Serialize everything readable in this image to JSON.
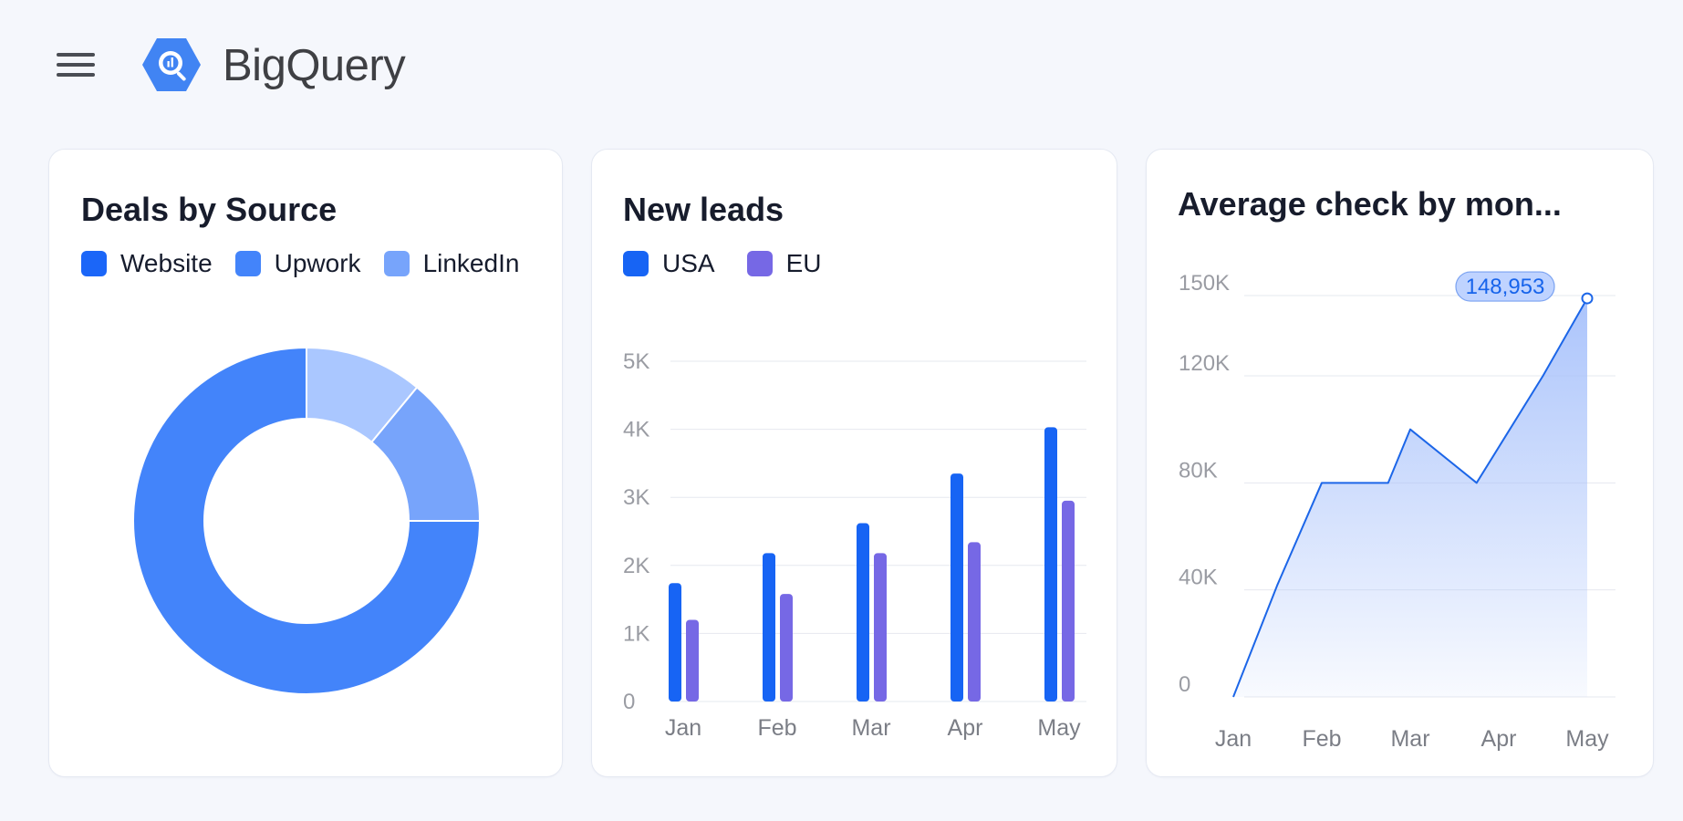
{
  "header": {
    "brand": "BigQuery",
    "menu_icon": "hamburger-menu-icon",
    "logo_icon": "bigquery-logo-icon",
    "logo_color": "#4184f3"
  },
  "cards": {
    "deals": {
      "title": "Deals by Source",
      "legend": [
        {
          "label": "Website",
          "color": "#1b66f8"
        },
        {
          "label": "Upwork",
          "color": "#4384fa"
        },
        {
          "label": "LinkedIn",
          "color": "#77a4fb"
        }
      ]
    },
    "leads": {
      "title": "New leads",
      "legend": [
        {
          "label": "USA",
          "color": "#1764f4"
        },
        {
          "label": "EU",
          "color": "#7668e5"
        }
      ]
    },
    "average": {
      "title": "Average check by mon..."
    }
  },
  "chart_data": [
    {
      "type": "pie",
      "title": "Deals by Source",
      "categories": [
        "LinkedIn",
        "Upwork",
        "Website"
      ],
      "values": [
        11,
        14,
        75
      ],
      "colors": [
        "#aac7ff",
        "#77a4fb",
        "#4384fa"
      ],
      "legend_position": "top-left"
    },
    {
      "type": "bar",
      "title": "New leads",
      "categories": [
        "Jan",
        "Feb",
        "Mar",
        "Apr",
        "May"
      ],
      "series": [
        {
          "name": "USA",
          "values": [
            1740,
            2180,
            2620,
            3350,
            4030
          ],
          "color": "#1764f4"
        },
        {
          "name": "EU",
          "values": [
            1200,
            1580,
            2180,
            2340,
            2950
          ],
          "color": "#7668e5"
        }
      ],
      "ylim": [
        0,
        5000
      ],
      "yticks": [
        "0",
        "1K",
        "2K",
        "3K",
        "4K",
        "5K"
      ],
      "grid": true,
      "legend_position": "top-left"
    },
    {
      "type": "area",
      "title": "Average check by mon...",
      "x": [
        0,
        0.5,
        1,
        1.75,
        2,
        2.75,
        3.5,
        4
      ],
      "categories": [
        "Jan",
        "Feb",
        "Mar",
        "Apr",
        "May"
      ],
      "values": [
        0,
        42000,
        80000,
        80000,
        100000,
        80000,
        120000,
        148953
      ],
      "ylim": [
        0,
        150000
      ],
      "yticks": [
        "0",
        "40K",
        "80K",
        "120K",
        "150K"
      ],
      "point_label": "148,953",
      "grid": true,
      "line_color": "#1c66e8",
      "fill_color": "#a7c1fb"
    }
  ]
}
